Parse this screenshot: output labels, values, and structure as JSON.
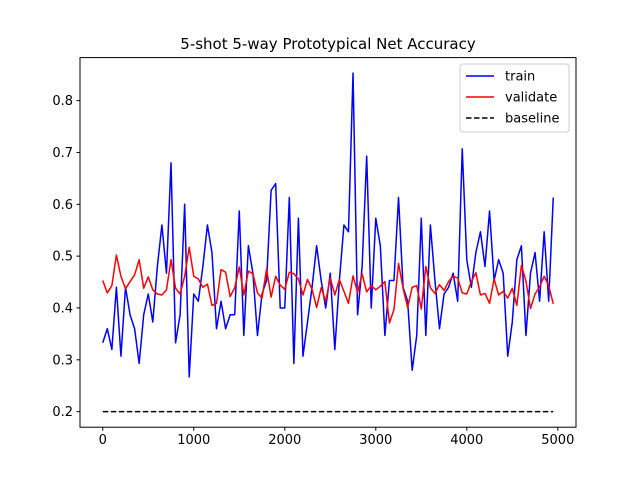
{
  "chart_data": {
    "type": "line",
    "title": "5-shot 5-way Prototypical Net Accuracy",
    "xlabel": "",
    "ylabel": "",
    "xlim": [
      -250,
      5200
    ],
    "ylim": [
      0.17,
      0.883
    ],
    "xticks": [
      0,
      1000,
      2000,
      3000,
      4000,
      5000
    ],
    "xtick_labels": [
      "0",
      "1000",
      "2000",
      "3000",
      "4000",
      "5000"
    ],
    "yticks": [
      0.2,
      0.3,
      0.4,
      0.5,
      0.6,
      0.7,
      0.8
    ],
    "ytick_labels": [
      "0.2",
      "0.3",
      "0.4",
      "0.5",
      "0.6",
      "0.7",
      "0.8"
    ],
    "grid": false,
    "legend_position": "top-right",
    "x": [
      0,
      50,
      100,
      150,
      200,
      250,
      300,
      350,
      400,
      450,
      500,
      550,
      600,
      650,
      700,
      750,
      800,
      850,
      900,
      950,
      1000,
      1050,
      1100,
      1150,
      1200,
      1250,
      1300,
      1350,
      1400,
      1450,
      1500,
      1550,
      1600,
      1650,
      1700,
      1750,
      1800,
      1850,
      1900,
      1950,
      2000,
      2050,
      2100,
      2150,
      2200,
      2250,
      2300,
      2350,
      2400,
      2450,
      2500,
      2550,
      2600,
      2650,
      2700,
      2750,
      2800,
      2850,
      2900,
      2950,
      3000,
      3050,
      3100,
      3150,
      3200,
      3250,
      3300,
      3350,
      3400,
      3450,
      3500,
      3550,
      3600,
      3650,
      3700,
      3750,
      3800,
      3850,
      3900,
      3950,
      4000,
      4050,
      4100,
      4150,
      4200,
      4250,
      4300,
      4350,
      4400,
      4450,
      4500,
      4550,
      4600,
      4650,
      4700,
      4750,
      4800,
      4850,
      4900,
      4950
    ],
    "series": [
      {
        "name": "train",
        "color": "#0000ff",
        "dash": "solid",
        "values": [
          0.333,
          0.36,
          0.32,
          0.44,
          0.307,
          0.44,
          0.387,
          0.36,
          0.293,
          0.387,
          0.427,
          0.373,
          0.48,
          0.56,
          0.467,
          0.68,
          0.333,
          0.387,
          0.6,
          0.267,
          0.427,
          0.413,
          0.48,
          0.56,
          0.507,
          0.36,
          0.413,
          0.36,
          0.387,
          0.387,
          0.587,
          0.347,
          0.52,
          0.467,
          0.347,
          0.427,
          0.453,
          0.627,
          0.64,
          0.4,
          0.4,
          0.613,
          0.293,
          0.573,
          0.307,
          0.373,
          0.44,
          0.52,
          0.453,
          0.4,
          0.467,
          0.32,
          0.453,
          0.56,
          0.547,
          0.853,
          0.387,
          0.48,
          0.693,
          0.4,
          0.573,
          0.52,
          0.347,
          0.453,
          0.453,
          0.613,
          0.44,
          0.413,
          0.28,
          0.347,
          0.573,
          0.347,
          0.56,
          0.453,
          0.36,
          0.427,
          0.44,
          0.467,
          0.413,
          0.707,
          0.493,
          0.44,
          0.507,
          0.547,
          0.48,
          0.587,
          0.453,
          0.493,
          0.467,
          0.307,
          0.373,
          0.493,
          0.52,
          0.347,
          0.467,
          0.507,
          0.413,
          0.547,
          0.413,
          0.613
        ]
      },
      {
        "name": "validate",
        "color": "#ff0000",
        "dash": "solid",
        "values": [
          0.453,
          0.429,
          0.443,
          0.502,
          0.461,
          0.437,
          0.451,
          0.464,
          0.493,
          0.438,
          0.46,
          0.435,
          0.427,
          0.425,
          0.435,
          0.493,
          0.438,
          0.427,
          0.461,
          0.517,
          0.461,
          0.456,
          0.44,
          0.446,
          0.405,
          0.409,
          0.474,
          0.469,
          0.422,
          0.439,
          0.479,
          0.425,
          0.471,
          0.466,
          0.429,
          0.419,
          0.475,
          0.421,
          0.461,
          0.444,
          0.436,
          0.469,
          0.466,
          0.456,
          0.425,
          0.455,
          0.436,
          0.401,
          0.439,
          0.413,
          0.458,
          0.425,
          0.455,
          0.432,
          0.409,
          0.462,
          0.43,
          0.466,
          0.431,
          0.443,
          0.435,
          0.442,
          0.451,
          0.371,
          0.397,
          0.486,
          0.438,
          0.401,
          0.44,
          0.443,
          0.398,
          0.48,
          0.439,
          0.428,
          0.445,
          0.434,
          0.451,
          0.461,
          0.458,
          0.429,
          0.427,
          0.451,
          0.468,
          0.425,
          0.428,
          0.409,
          0.456,
          0.425,
          0.432,
          0.419,
          0.438,
          0.405,
          0.482,
          0.452,
          0.399,
          0.427,
          0.441,
          0.461,
          0.443,
          0.408
        ]
      },
      {
        "name": "baseline",
        "color": "#000000",
        "dash": "dashed",
        "values": [
          0.2,
          0.2,
          0.2,
          0.2,
          0.2,
          0.2,
          0.2,
          0.2,
          0.2,
          0.2,
          0.2,
          0.2,
          0.2,
          0.2,
          0.2,
          0.2,
          0.2,
          0.2,
          0.2,
          0.2,
          0.2,
          0.2,
          0.2,
          0.2,
          0.2,
          0.2,
          0.2,
          0.2,
          0.2,
          0.2,
          0.2,
          0.2,
          0.2,
          0.2,
          0.2,
          0.2,
          0.2,
          0.2,
          0.2,
          0.2,
          0.2,
          0.2,
          0.2,
          0.2,
          0.2,
          0.2,
          0.2,
          0.2,
          0.2,
          0.2,
          0.2,
          0.2,
          0.2,
          0.2,
          0.2,
          0.2,
          0.2,
          0.2,
          0.2,
          0.2,
          0.2,
          0.2,
          0.2,
          0.2,
          0.2,
          0.2,
          0.2,
          0.2,
          0.2,
          0.2,
          0.2,
          0.2,
          0.2,
          0.2,
          0.2,
          0.2,
          0.2,
          0.2,
          0.2,
          0.2,
          0.2,
          0.2,
          0.2,
          0.2,
          0.2,
          0.2,
          0.2,
          0.2,
          0.2,
          0.2,
          0.2,
          0.2,
          0.2,
          0.2,
          0.2,
          0.2,
          0.2,
          0.2,
          0.2,
          0.2
        ]
      }
    ]
  }
}
